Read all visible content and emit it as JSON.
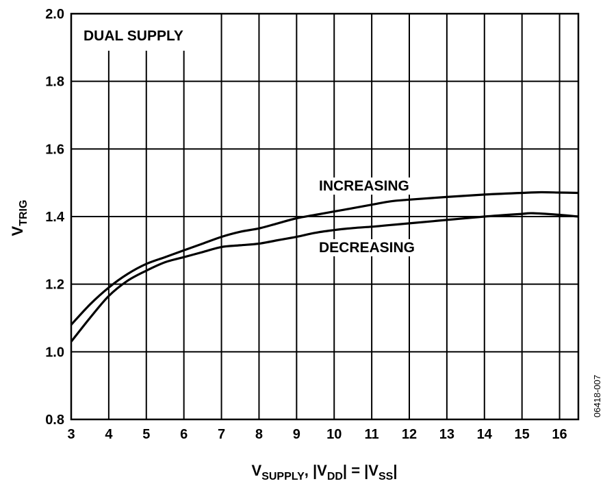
{
  "chart_data": {
    "type": "line",
    "ylabel": {
      "main": "V",
      "sub": "TRIG"
    },
    "xlabel": {
      "parts": [
        {
          "text": "V",
          "sub": false
        },
        {
          "text": "SUPPLY",
          "sub": true
        },
        {
          "text": ", |V",
          "sub": false
        },
        {
          "text": "DD",
          "sub": true
        },
        {
          "text": "| = |V",
          "sub": false
        },
        {
          "text": "SS",
          "sub": true
        },
        {
          "text": "|",
          "sub": false
        }
      ]
    },
    "xlim": [
      3,
      16.5
    ],
    "ylim": [
      0.8,
      2.0
    ],
    "x_ticks": [
      3,
      4,
      5,
      6,
      7,
      8,
      9,
      10,
      11,
      12,
      13,
      14,
      15,
      16
    ],
    "y_ticks": [
      "0.8",
      "1.0",
      "1.2",
      "1.4",
      "1.6",
      "1.8",
      "2.0"
    ],
    "grid": true,
    "series": [
      {
        "name": "INCREASING",
        "x": [
          3,
          3.5,
          4,
          4.5,
          5,
          5.5,
          6,
          6.5,
          7,
          7.5,
          8,
          8.5,
          9,
          9.5,
          10,
          10.5,
          11,
          11.5,
          12,
          13,
          14,
          15,
          15.5,
          16,
          16.5
        ],
        "y": [
          1.08,
          1.14,
          1.19,
          1.23,
          1.26,
          1.28,
          1.3,
          1.32,
          1.34,
          1.355,
          1.365,
          1.38,
          1.395,
          1.405,
          1.415,
          1.425,
          1.435,
          1.445,
          1.45,
          1.458,
          1.465,
          1.47,
          1.472,
          1.471,
          1.47
        ]
      },
      {
        "name": "DECREASING",
        "x": [
          3,
          3.5,
          4,
          4.5,
          5,
          5.5,
          6,
          6.5,
          7,
          7.5,
          8,
          8.5,
          9,
          9.5,
          10,
          10.5,
          11,
          11.5,
          12,
          13,
          14,
          15,
          15.3,
          16,
          16.5
        ],
        "y": [
          1.03,
          1.1,
          1.165,
          1.21,
          1.24,
          1.265,
          1.28,
          1.295,
          1.31,
          1.315,
          1.32,
          1.33,
          1.34,
          1.352,
          1.36,
          1.366,
          1.37,
          1.375,
          1.38,
          1.39,
          1.4,
          1.408,
          1.41,
          1.405,
          1.4
        ]
      }
    ],
    "annotations": [
      {
        "text": "DUAL SUPPLY"
      },
      {
        "text": "INCREASING"
      },
      {
        "text": "DECREASING"
      }
    ],
    "figure_id": "06418-007"
  }
}
